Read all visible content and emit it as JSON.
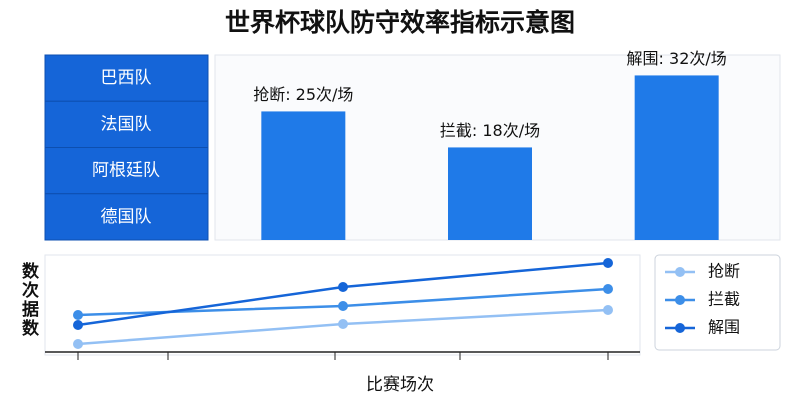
{
  "title": "世界杯球队防守效率指标示意图",
  "teams": [
    "巴西队",
    "法国队",
    "阿根廷队",
    "德国队"
  ],
  "chart_data": [
    {
      "type": "bar",
      "categories": [
        "抢断",
        "拦截",
        "解围"
      ],
      "values": [
        25,
        18,
        32
      ],
      "value_labels": [
        "抢断: 25次/场",
        "拦截: 18次/场",
        "解围: 32次/场"
      ],
      "color": "#1f7ae8",
      "ylim": [
        0,
        35
      ]
    },
    {
      "type": "line",
      "xlabel": "比赛场次",
      "ylabel": "数次据数",
      "categories": [
        null,
        null,
        null
      ],
      "ylim": [
        0,
        100
      ],
      "legend": "right",
      "series": [
        {
          "name": "抢断",
          "color": "#93c0f4",
          "values": [
            8,
            28,
            42
          ]
        },
        {
          "name": "拦截",
          "color": "#3c8ee8",
          "values": [
            37,
            46,
            63
          ]
        },
        {
          "name": "解围",
          "color": "#1565d8",
          "values": [
            27,
            65,
            89
          ]
        }
      ]
    }
  ]
}
